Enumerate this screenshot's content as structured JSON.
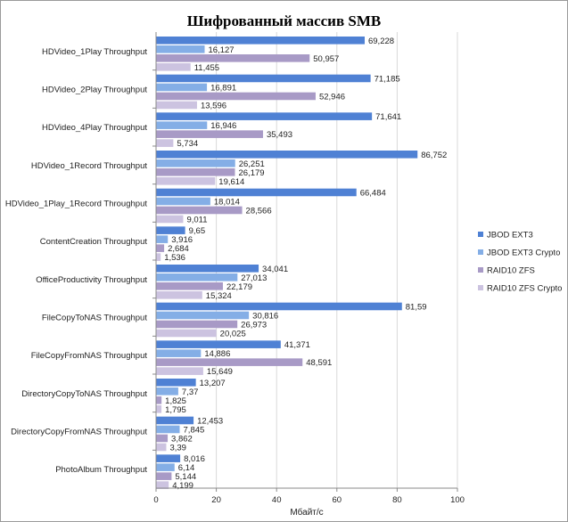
{
  "chart_data": {
    "type": "bar",
    "orientation": "horizontal",
    "title": "Шифрованный массив SMB",
    "xlabel": "Мбайт/с",
    "xlim": [
      0,
      100
    ],
    "xticks": [
      "0",
      "20",
      "40",
      "60",
      "80",
      "100"
    ],
    "grid": true,
    "legend_position": "right",
    "categories": [
      "HDVideo_1Play Throughput",
      "HDVideo_2Play Throughput",
      "HDVideo_4Play Throughput",
      "HDVideo_1Record Throughput",
      "HDVideo_1Play_1Record Throughput",
      "ContentCreation Throughput",
      "OfficeProductivity Throughput",
      "FileCopyToNAS Throughput",
      "FileCopyFromNAS Throughput",
      "DirectoryCopyToNAS Throughput",
      "DirectoryCopyFromNAS Throughput",
      "PhotoAlbum Throughput"
    ],
    "series": [
      {
        "name": "JBOD EXT3",
        "color": "#4f81d4",
        "values": [
          69.228,
          71.185,
          71.641,
          86.752,
          66.484,
          9.65,
          34.041,
          81.59,
          41.371,
          13.207,
          12.453,
          8.016
        ],
        "labels": [
          "69,228",
          "71,185",
          "71,641",
          "86,752",
          "66,484",
          "9,65",
          "34,041",
          "81,59",
          "41,371",
          "13,207",
          "12,453",
          "8,016"
        ]
      },
      {
        "name": "JBOD EXT3 Crypto",
        "color": "#84aee6",
        "values": [
          16.127,
          16.891,
          16.946,
          26.251,
          18.014,
          3.916,
          27.013,
          30.816,
          14.886,
          7.37,
          7.845,
          6.14
        ],
        "labels": [
          "16,127",
          "16,891",
          "16,946",
          "26,251",
          "18,014",
          "3,916",
          "27,013",
          "30,816",
          "14,886",
          "7,37",
          "7,845",
          "6,14"
        ]
      },
      {
        "name": "RAID10 ZFS",
        "color": "#a89ac6",
        "values": [
          50.957,
          52.946,
          35.493,
          26.179,
          28.566,
          2.684,
          22.179,
          26.973,
          48.591,
          1.825,
          3.862,
          5.144
        ],
        "labels": [
          "50,957",
          "52,946",
          "35,493",
          "26,179",
          "28,566",
          "2,684",
          "22,179",
          "26,973",
          "48,591",
          "1,825",
          "3,862",
          "5,144"
        ]
      },
      {
        "name": "RAID10 ZFS Crypto",
        "color": "#ccc3e0",
        "values": [
          11.455,
          13.596,
          5.734,
          19.614,
          9.011,
          1.536,
          15.324,
          20.025,
          15.649,
          1.795,
          3.39,
          4.199
        ],
        "labels": [
          "11,455",
          "13,596",
          "5,734",
          "19,614",
          "9,011",
          "1,536",
          "15,324",
          "20,025",
          "15,649",
          "1,795",
          "3,39",
          "4,199"
        ]
      }
    ]
  }
}
